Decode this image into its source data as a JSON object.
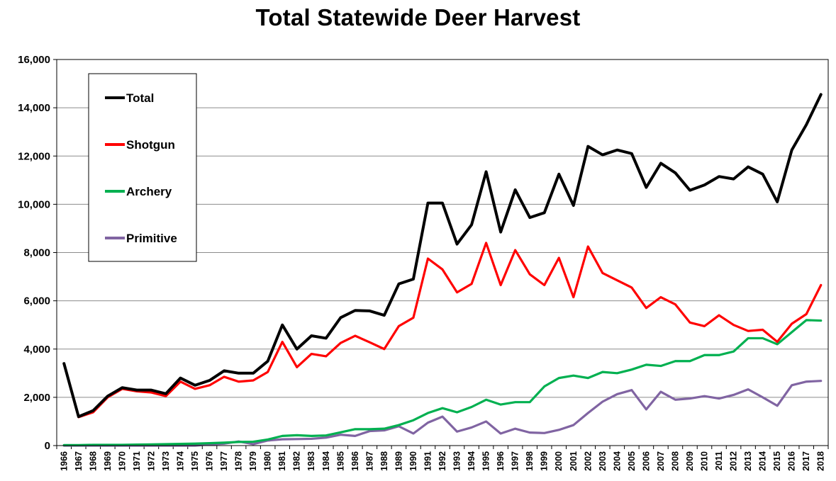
{
  "chart_data": {
    "type": "line",
    "title": "Total Statewide Deer Harvest",
    "xlabel": "",
    "ylabel": "",
    "ylim": [
      0,
      16000
    ],
    "yticks": [
      0,
      2000,
      4000,
      6000,
      8000,
      10000,
      12000,
      14000,
      16000
    ],
    "ytick_labels": [
      "0",
      "2,000",
      "4,000",
      "6,000",
      "8,000",
      "10,000",
      "12,000",
      "14,000",
      "16,000"
    ],
    "grid": "horizontal",
    "legend_position": "top-left",
    "x": [
      "1966",
      "1967",
      "1968",
      "1969",
      "1970",
      "1971",
      "1972",
      "1973",
      "1974",
      "1975",
      "1976",
      "1977",
      "1978",
      "1979",
      "1980",
      "1981",
      "1982",
      "1983",
      "1984",
      "1985",
      "1986",
      "1987",
      "1988",
      "1989",
      "1990",
      "1991",
      "1992",
      "1993",
      "1994",
      "1995",
      "1996",
      "1997",
      "1998",
      "1999",
      "2000",
      "2001",
      "2002",
      "2003",
      "2004",
      "2005",
      "2006",
      "2007",
      "2008",
      "2009",
      "2010",
      "2011",
      "2012",
      "2013",
      "2014",
      "2015",
      "2016",
      "2017",
      "2018"
    ],
    "series": [
      {
        "name": "Total",
        "color": "#000000",
        "values": [
          3400,
          1200,
          1450,
          2050,
          2400,
          2300,
          2300,
          2150,
          2800,
          2500,
          2700,
          3100,
          3000,
          3000,
          3500,
          5000,
          4000,
          4550,
          4450,
          5300,
          5600,
          5580,
          5400,
          6700,
          6900,
          10050,
          10050,
          8350,
          9150,
          11350,
          8850,
          10600,
          9450,
          9650,
          11250,
          9950,
          12400,
          12050,
          12250,
          12100,
          10700,
          11700,
          11300,
          10580,
          10800,
          11150,
          11050,
          11550,
          11250,
          10100,
          12250,
          13300,
          14550
        ]
      },
      {
        "name": "Shotgun",
        "color": "#ff0000",
        "values": [
          3400,
          1180,
          1380,
          2000,
          2350,
          2250,
          2200,
          2050,
          2650,
          2350,
          2500,
          2850,
          2650,
          2700,
          3050,
          4300,
          3250,
          3800,
          3700,
          4250,
          4550,
          4280,
          4000,
          4950,
          5300,
          7750,
          7300,
          6350,
          6700,
          8400,
          6650,
          8100,
          7100,
          6650,
          7780,
          6150,
          8250,
          7150,
          6850,
          6550,
          5700,
          6150,
          5850,
          5100,
          4950,
          5400,
          5000,
          4750,
          4800,
          4300,
          5050,
          5450,
          6650
        ]
      },
      {
        "name": "Archery",
        "color": "#00b050",
        "values": [
          20,
          20,
          30,
          30,
          30,
          40,
          50,
          60,
          70,
          80,
          100,
          120,
          150,
          160,
          250,
          400,
          430,
          400,
          420,
          550,
          680,
          680,
          700,
          850,
          1050,
          1350,
          1550,
          1380,
          1600,
          1900,
          1700,
          1800,
          1800,
          2450,
          2800,
          2900,
          2800,
          3050,
          3000,
          3150,
          3350,
          3300,
          3500,
          3500,
          3750,
          3750,
          3900,
          4450,
          4450,
          4200,
          4700,
          5200,
          5180
        ]
      },
      {
        "name": "Primitive",
        "color": "#8064a2",
        "values": [
          0,
          0,
          0,
          0,
          0,
          0,
          0,
          0,
          0,
          0,
          50,
          80,
          170,
          60,
          210,
          260,
          270,
          280,
          330,
          450,
          400,
          600,
          630,
          800,
          500,
          950,
          1200,
          580,
          750,
          1000,
          500,
          700,
          540,
          520,
          650,
          850,
          1350,
          1820,
          2130,
          2300,
          1500,
          2230,
          1900,
          1950,
          2050,
          1950,
          2100,
          2330,
          2000,
          1650,
          2500,
          2650,
          2680
        ]
      }
    ]
  }
}
